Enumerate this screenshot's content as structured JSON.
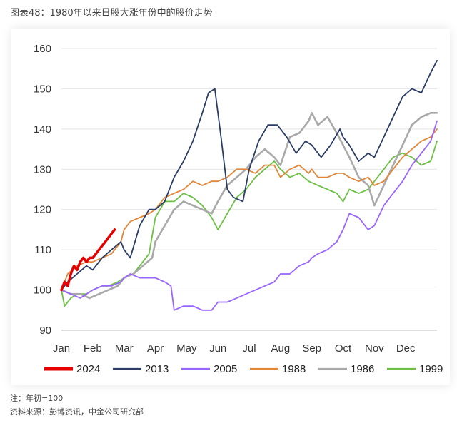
{
  "figure": {
    "title": "图表48：1980年以来日股大涨年份中的股价走势",
    "note": "注：年初=100",
    "source": "资料来源：彭博资讯，中金公司研究部"
  },
  "chart_data": {
    "type": "line",
    "xlabel": "",
    "ylabel": "",
    "ylim": [
      90,
      160
    ],
    "yticks": [
      90,
      100,
      110,
      120,
      130,
      140,
      150,
      160
    ],
    "x_tick_labels": [
      "Jan",
      "Feb",
      "Mar",
      "Apr",
      "May",
      "Jun",
      "Jul",
      "Aug",
      "Sep",
      "Oct",
      "Nov",
      "Dec"
    ],
    "x_unit": "month (Jan 1 = 0, Dec 31 = 12)",
    "grid": "horizontal",
    "legend_position": "bottom",
    "series": [
      {
        "name": "1999",
        "color": "#6cbf45",
        "x": [
          0,
          0.1,
          0.3,
          0.5,
          0.8,
          1.0,
          1.3,
          1.5,
          1.8,
          2.0,
          2.3,
          2.5,
          2.8,
          3.0,
          3.3,
          3.6,
          3.9,
          4.2,
          4.5,
          4.8,
          5.0,
          5.3,
          5.6,
          5.9,
          6.2,
          6.5,
          6.8,
          7.0,
          7.3,
          7.6,
          7.9,
          8.2,
          8.5,
          8.8,
          9.0,
          9.2,
          9.5,
          9.8,
          10.0,
          10.3,
          10.6,
          10.9,
          11.2,
          11.5,
          11.8,
          12.0
        ],
        "y": [
          100,
          96,
          98,
          99,
          99,
          100,
          101,
          101,
          102,
          103,
          104,
          106,
          109,
          118,
          122,
          122,
          124,
          123,
          121,
          118,
          115,
          119,
          123,
          125,
          128,
          130,
          132,
          130,
          128,
          129,
          127,
          126,
          125,
          124,
          122,
          125,
          124,
          125,
          127,
          130,
          133,
          134,
          133,
          131,
          132,
          137
        ]
      },
      {
        "name": "1986",
        "color": "#a9a9a9",
        "x": [
          0,
          0.3,
          0.6,
          0.9,
          1.2,
          1.5,
          1.8,
          2.0,
          2.3,
          2.6,
          2.9,
          3.0,
          3.3,
          3.6,
          3.9,
          4.2,
          4.5,
          4.8,
          5.0,
          5.3,
          5.6,
          5.9,
          6.2,
          6.5,
          6.8,
          7.0,
          7.3,
          7.6,
          7.9,
          8.0,
          8.2,
          8.5,
          8.8,
          9.0,
          9.2,
          9.5,
          9.8,
          10.0,
          10.3,
          10.6,
          10.9,
          11.2,
          11.5,
          11.8,
          12.0
        ],
        "y": [
          100,
          99,
          99,
          98,
          99,
          100,
          101,
          103,
          104,
          106,
          108,
          112,
          116,
          120,
          122,
          121,
          120,
          119,
          122,
          126,
          128,
          130,
          133,
          135,
          133,
          131,
          138,
          139,
          142,
          144,
          141,
          143,
          139,
          136,
          133,
          128,
          126,
          121,
          126,
          131,
          136,
          141,
          143,
          144,
          144
        ]
      },
      {
        "name": "1988",
        "color": "#e0873a",
        "x": [
          0,
          0.2,
          0.5,
          0.8,
          1.0,
          1.3,
          1.6,
          1.9,
          2.0,
          2.2,
          2.5,
          2.8,
          3.0,
          3.3,
          3.6,
          3.9,
          4.2,
          4.5,
          4.8,
          5.0,
          5.3,
          5.6,
          5.9,
          6.2,
          6.5,
          6.8,
          7.0,
          7.3,
          7.6,
          7.9,
          8.0,
          8.2,
          8.5,
          8.8,
          9.0,
          9.2,
          9.5,
          9.8,
          10.0,
          10.3,
          10.6,
          10.9,
          11.2,
          11.5,
          11.8,
          12.0
        ],
        "y": [
          100,
          104,
          106,
          107,
          107,
          108,
          109,
          112,
          115,
          117,
          118,
          119,
          120,
          123,
          124,
          125,
          127,
          126,
          127,
          127,
          128,
          130,
          130,
          129,
          131,
          131,
          128,
          130,
          131,
          129,
          130,
          128,
          128,
          129,
          129,
          128,
          127,
          128,
          126,
          127,
          130,
          133,
          135,
          137,
          138,
          140
        ]
      },
      {
        "name": "2005",
        "color": "#9966ff",
        "x": [
          0,
          0.3,
          0.6,
          0.8,
          1.0,
          1.3,
          1.6,
          1.9,
          2.0,
          2.2,
          2.5,
          2.8,
          3.0,
          3.3,
          3.5,
          3.6,
          3.9,
          4.2,
          4.5,
          4.8,
          5.0,
          5.3,
          5.6,
          5.9,
          6.2,
          6.5,
          6.8,
          7.0,
          7.3,
          7.6,
          7.9,
          8.0,
          8.2,
          8.5,
          8.8,
          9.0,
          9.2,
          9.5,
          9.8,
          10.0,
          10.3,
          10.6,
          10.9,
          11.2,
          11.5,
          11.8,
          12.0
        ],
        "y": [
          100,
          99,
          98,
          99,
          100,
          101,
          101,
          102,
          103,
          104,
          103,
          103,
          103,
          102,
          101,
          95,
          96,
          96,
          95,
          95,
          97,
          97,
          98,
          99,
          100,
          101,
          102,
          104,
          104,
          106,
          107,
          108,
          109,
          110,
          112,
          115,
          119,
          118,
          115,
          116,
          121,
          124,
          127,
          131,
          134,
          137,
          142
        ]
      },
      {
        "name": "2013",
        "color": "#2b3d66",
        "x": [
          0,
          0.2,
          0.5,
          0.8,
          1.0,
          1.3,
          1.6,
          1.9,
          2.0,
          2.2,
          2.5,
          2.8,
          3.0,
          3.3,
          3.6,
          3.9,
          4.2,
          4.5,
          4.7,
          4.9,
          5.1,
          5.3,
          5.5,
          5.8,
          6.0,
          6.3,
          6.6,
          6.9,
          7.2,
          7.5,
          7.8,
          8.0,
          8.3,
          8.6,
          8.9,
          9.0,
          9.2,
          9.5,
          9.8,
          10.0,
          10.3,
          10.6,
          10.9,
          11.2,
          11.5,
          11.8,
          12.0
        ],
        "y": [
          100,
          102,
          104,
          106,
          105,
          108,
          110,
          112,
          110,
          108,
          116,
          120,
          120,
          122,
          128,
          132,
          137,
          144,
          149,
          150,
          138,
          125,
          123,
          122,
          130,
          137,
          141,
          141,
          138,
          134,
          137,
          136,
          133,
          136,
          140,
          138,
          136,
          132,
          134,
          133,
          138,
          143,
          148,
          150,
          149,
          154,
          157
        ]
      },
      {
        "name": "2024",
        "color": "#e60000",
        "x": [
          0,
          0.1,
          0.2,
          0.3,
          0.4,
          0.5,
          0.6,
          0.7,
          0.8,
          0.9,
          1.0,
          1.1,
          1.2,
          1.3,
          1.4,
          1.5,
          1.6,
          1.7
        ],
        "y": [
          100,
          102,
          101,
          104,
          106,
          105,
          107,
          108,
          107,
          108,
          108,
          109,
          110,
          111,
          112,
          113,
          114,
          115
        ]
      }
    ],
    "legend_order": [
      "2024",
      "2013",
      "2005",
      "1988",
      "1986",
      "1999"
    ]
  }
}
